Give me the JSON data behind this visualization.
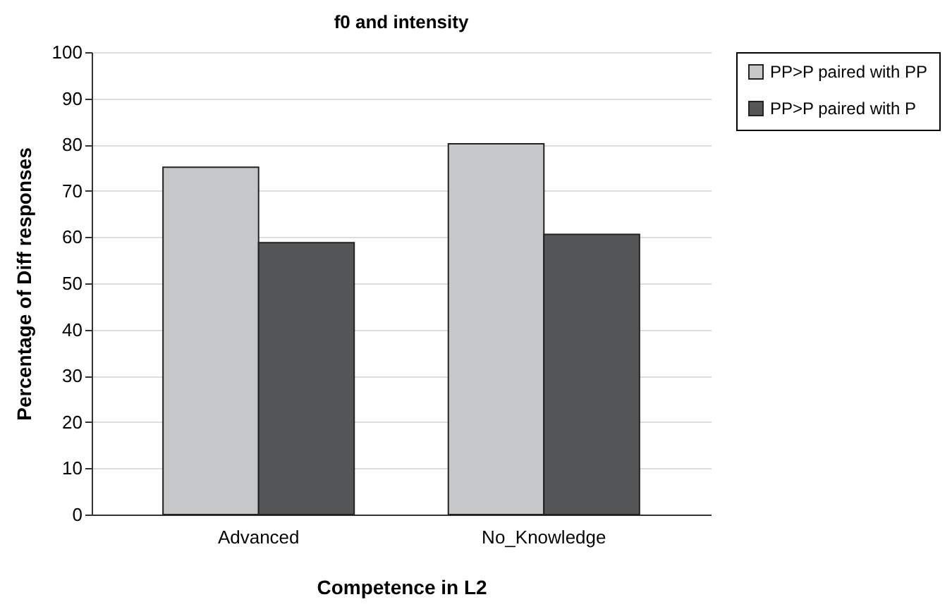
{
  "chart_data": {
    "type": "bar",
    "title": "f0 and intensity",
    "xlabel": "Competence in L2",
    "ylabel": "Percentage of Diff responses",
    "categories": [
      "Advanced",
      "No_Knowledge"
    ],
    "series": [
      {
        "name": "PP>P paired with PP",
        "color": "#c6c7c9",
        "values": [
          75.1,
          80.2
        ]
      },
      {
        "name": "PP>P paired with P",
        "color": "#555658",
        "values": [
          58.8,
          60.6
        ]
      }
    ],
    "ylim": [
      0,
      100
    ],
    "yticks": [
      0,
      10,
      20,
      30,
      40,
      50,
      60,
      70,
      80,
      90,
      100
    ],
    "grid": "y",
    "legend": "right"
  }
}
